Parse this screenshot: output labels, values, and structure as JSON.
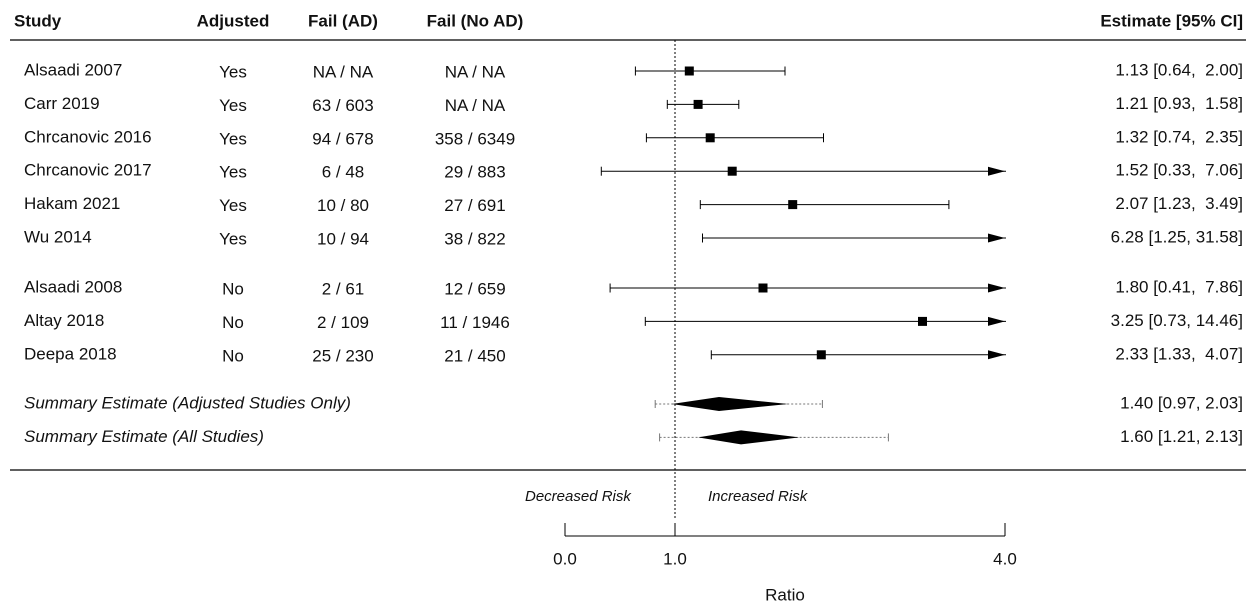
{
  "chart_data": {
    "type": "forest",
    "columns": [
      "Study",
      "Adjusted",
      "Fail (AD)",
      "Fail (No AD)",
      "Estimate [95% CI]"
    ],
    "studies": [
      "Alsaadi 2007",
      "Carr 2019",
      "Chrcanovic 2016",
      "Chrcanovic 2017",
      "Hakam 2021",
      "Wu 2014",
      "Alsaadi 2008",
      "Altay 2018",
      "Deepa 2018"
    ],
    "adjusted": [
      "Yes",
      "Yes",
      "Yes",
      "Yes",
      "Yes",
      "Yes",
      "No",
      "No",
      "No"
    ],
    "fail_ad": [
      "NA / NA",
      "63 / 603",
      "94 / 678",
      "6 / 48",
      "10 / 80",
      "10 / 94",
      "2 / 61",
      "2 / 109",
      "25 / 230"
    ],
    "fail_no_ad": [
      "NA / NA",
      "NA / NA",
      "358 / 6349",
      "29 / 883",
      "27 / 691",
      "38 / 822",
      "12 / 659",
      "11 / 1946",
      "21 / 450"
    ],
    "estimates": [
      1.13,
      1.21,
      1.32,
      1.52,
      2.07,
      6.28,
      1.8,
      3.25,
      2.33
    ],
    "lower": [
      0.64,
      0.93,
      0.74,
      0.33,
      1.23,
      1.25,
      0.41,
      0.73,
      1.33
    ],
    "upper": [
      2.0,
      1.58,
      2.35,
      7.06,
      3.49,
      31.58,
      7.86,
      14.46,
      4.07
    ],
    "value_labels": [
      "1.13 [0.64,  2.00]",
      "1.21 [0.93,  1.58]",
      "1.32 [0.74,  2.35]",
      "1.52 [0.33,  7.06]",
      "2.07 [1.23,  3.49]",
      "6.28 [1.25, 31.58]",
      "1.80 [0.41,  7.86]",
      "3.25 [0.73, 14.46]",
      "2.33 [1.33,  4.07]"
    ],
    "summary": [
      {
        "label": "Summary Estimate (Adjusted Studies Only)",
        "estimate": 1.4,
        "lower": 0.97,
        "upper": 2.03,
        "pi_lower": 0.82,
        "pi_upper": 2.34,
        "value_label": "1.40 [0.97, 2.03]"
      },
      {
        "label": "Summary Estimate (All Studies)",
        "estimate": 1.6,
        "lower": 1.21,
        "upper": 2.13,
        "pi_lower": 0.86,
        "pi_upper": 2.94,
        "value_label": "1.60 [1.21, 2.13]"
      }
    ],
    "reference_line": 1,
    "annotations": [
      "Decreased Risk",
      "Increased Risk"
    ],
    "xlabel": "Ratio",
    "xlim": [
      0,
      4
    ],
    "xticks": [
      {
        "value": 0,
        "label": "0.0"
      },
      {
        "value": 1,
        "label": "1.0"
      },
      {
        "value": 4,
        "label": "4.0"
      }
    ]
  }
}
